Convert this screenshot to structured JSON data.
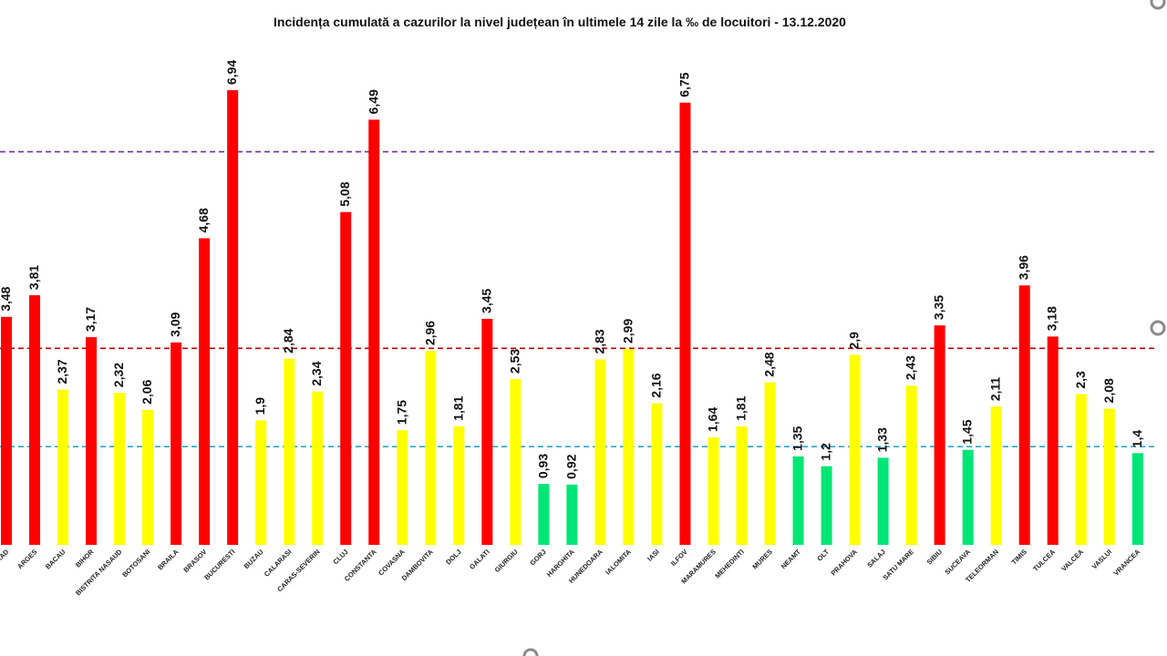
{
  "chart_data": {
    "type": "bar",
    "title": "Incidența cumulată a cazurilor la nivel județean în ultimele 14 zile   la ‰ de locuitori  - 13.12.2020",
    "xlabel": "",
    "ylabel": "",
    "ylim": [
      0,
      7.5
    ],
    "grid": false,
    "categories": [
      "ARAD",
      "ARGES",
      "BACAU",
      "BIHOR",
      "BISTRITA NASAUD",
      "BOTOSANI",
      "BRAILA",
      "BRASOV",
      "BUCURESTI",
      "BUZAU",
      "CALARASI",
      "CARAS-SEVERIN",
      "CLUJ",
      "CONSTANTA",
      "COVASNA",
      "DAMBOVITA",
      "DOLJ",
      "GALATI",
      "GIURGIU",
      "GORJ",
      "HARGHITA",
      "HUNEDOARA",
      "IALOMITA",
      "IASI",
      "ILFOV",
      "MARAMURES",
      "MEHEDINTI",
      "MURES",
      "NEAMT",
      "OLT",
      "PRAHOVA",
      "SALAJ",
      "SATU MARE",
      "SIBIU",
      "SUCEAVA",
      "TELEORMAN",
      "TIMIS",
      "TULCEA",
      "VALCEA",
      "VASLUI",
      "VRANCEA"
    ],
    "category_labels_shown": [
      "RAD",
      "ARGES",
      "BACAU",
      "BIHOR",
      "BISTRITA NASAUD",
      "BOTOSANI",
      "BRAILA",
      "BRASOV",
      "BUCURESTI",
      "BUZAU",
      "CALARASI",
      "CARAS-SEVERIN",
      "CLUJ",
      "CONSTANTA",
      "COVASNA",
      "DAMBOVITA",
      "DOLJ",
      "GALATI",
      "GIURGIU",
      "GORJ",
      "HARGHITA",
      "HUNEDOARA",
      "IALOMITA",
      "IASI",
      "ILFOV",
      "MARAMURES",
      "MEHEDINTI",
      "MURES",
      "NEAMT",
      "OLT",
      "PRAHOVA",
      "SALAJ",
      "SATU MARE",
      "SIBIU",
      "SUCEAVA",
      "TELEORMAN",
      "TIMIS",
      "TULCEA",
      "VALCEA",
      "VASLUI",
      "VRANCEA"
    ],
    "values": [
      3.48,
      3.81,
      2.37,
      3.17,
      2.32,
      2.06,
      3.09,
      4.68,
      6.94,
      1.9,
      2.84,
      2.34,
      5.08,
      6.49,
      1.75,
      2.96,
      1.81,
      3.45,
      2.53,
      0.93,
      0.92,
      2.83,
      2.99,
      2.16,
      6.75,
      1.64,
      1.81,
      2.48,
      1.35,
      1.2,
      2.9,
      1.33,
      2.43,
      3.35,
      1.45,
      2.11,
      3.96,
      3.18,
      2.3,
      2.08,
      1.4
    ],
    "value_labels": [
      "3,48",
      "3,81",
      "2,37",
      "3,17",
      "2,32",
      "2,06",
      "3,09",
      "4,68",
      "6,94",
      "1,9",
      "2,84",
      "2,34",
      "5,08",
      "6,49",
      "1,75",
      "2,96",
      "1,81",
      "3,45",
      "2,53",
      "0,93",
      "0,92",
      "2,83",
      "2,99",
      "2,16",
      "6,75",
      "1,64",
      "1,81",
      "2,48",
      "1,35",
      "1,2",
      "2,9",
      "1,33",
      "2,43",
      "3,35",
      "1,45",
      "2,11",
      "3,96",
      "3,18",
      "2,3",
      "2,08",
      "1,4"
    ],
    "thresholds": [
      {
        "value": 6.0,
        "color": "#7030a0"
      },
      {
        "value": 3.0,
        "color": "#c00000"
      },
      {
        "value": 1.5,
        "color": "#2aa8c9"
      }
    ],
    "colors": {
      "red": "#ff0000",
      "yellow": "#ffff00",
      "green": "#00e676"
    }
  }
}
